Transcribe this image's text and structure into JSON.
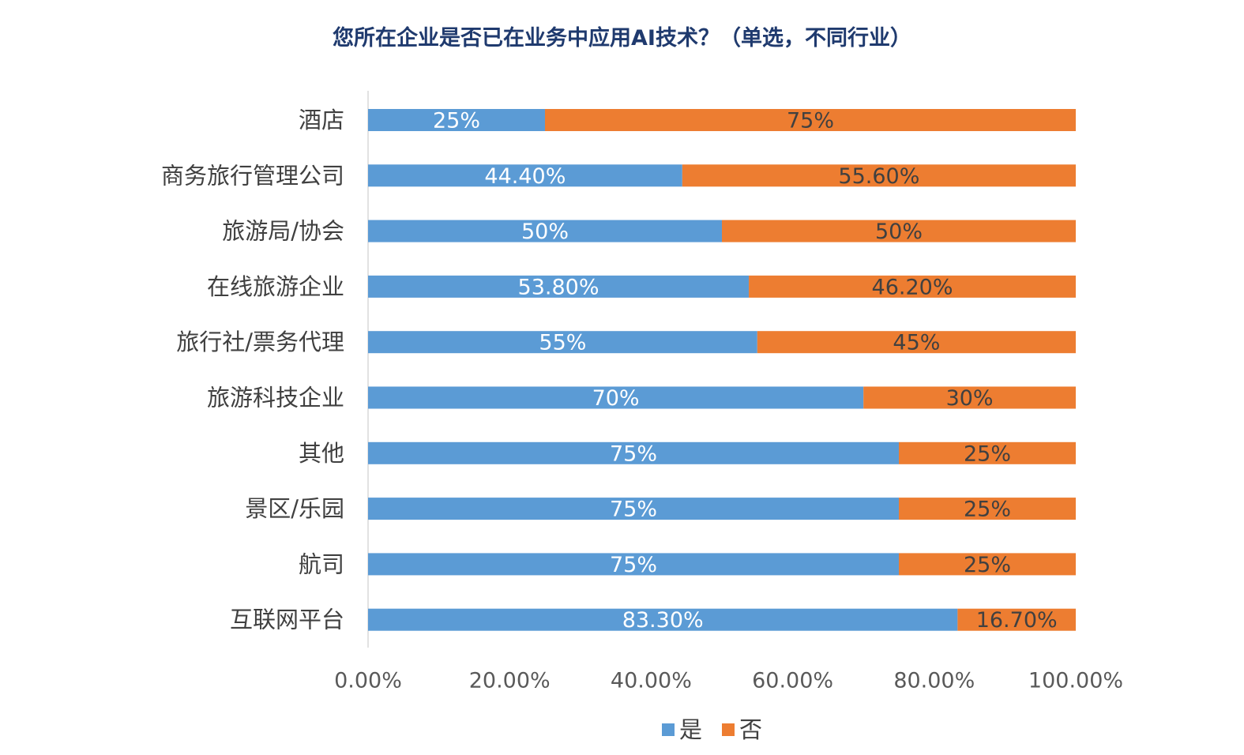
{
  "chart_data": {
    "type": "bar",
    "orientation": "horizontal",
    "stacked": true,
    "title": "您所在企业是否已在业务中应用AI技术？（单选，不同行业）",
    "categories": [
      "酒店",
      "商务旅行管理公司",
      "旅游局/协会",
      "在线旅游企业",
      "旅行社/票务代理",
      "旅游科技企业",
      "其他",
      "景区/乐园",
      "航司",
      "互联网平台"
    ],
    "series": [
      {
        "name": "是",
        "color": "#5b9bd5",
        "label_color": "#ffffff",
        "values": [
          25,
          44.4,
          50,
          53.8,
          55,
          70,
          75,
          75,
          75,
          83.3
        ],
        "labels": [
          "25%",
          "44.40%",
          "50%",
          "53.80%",
          "55%",
          "70%",
          "75%",
          "75%",
          "75%",
          "83.30%"
        ]
      },
      {
        "name": "否",
        "color": "#ed7d31",
        "label_color": "#404040",
        "values": [
          75,
          55.6,
          50,
          46.2,
          45,
          30,
          25,
          25,
          25,
          16.7
        ],
        "labels": [
          "75%",
          "55.60%",
          "50%",
          "46.20%",
          "45%",
          "30%",
          "25%",
          "25%",
          "25%",
          "16.70%"
        ]
      }
    ],
    "xlim": [
      0,
      100
    ],
    "xticks": [
      0,
      20,
      40,
      60,
      80,
      100
    ],
    "xtick_labels": [
      "0.00%",
      "20.00%",
      "40.00%",
      "60.00%",
      "80.00%",
      "100.00%"
    ],
    "grid": false,
    "legend_position": "bottom"
  }
}
